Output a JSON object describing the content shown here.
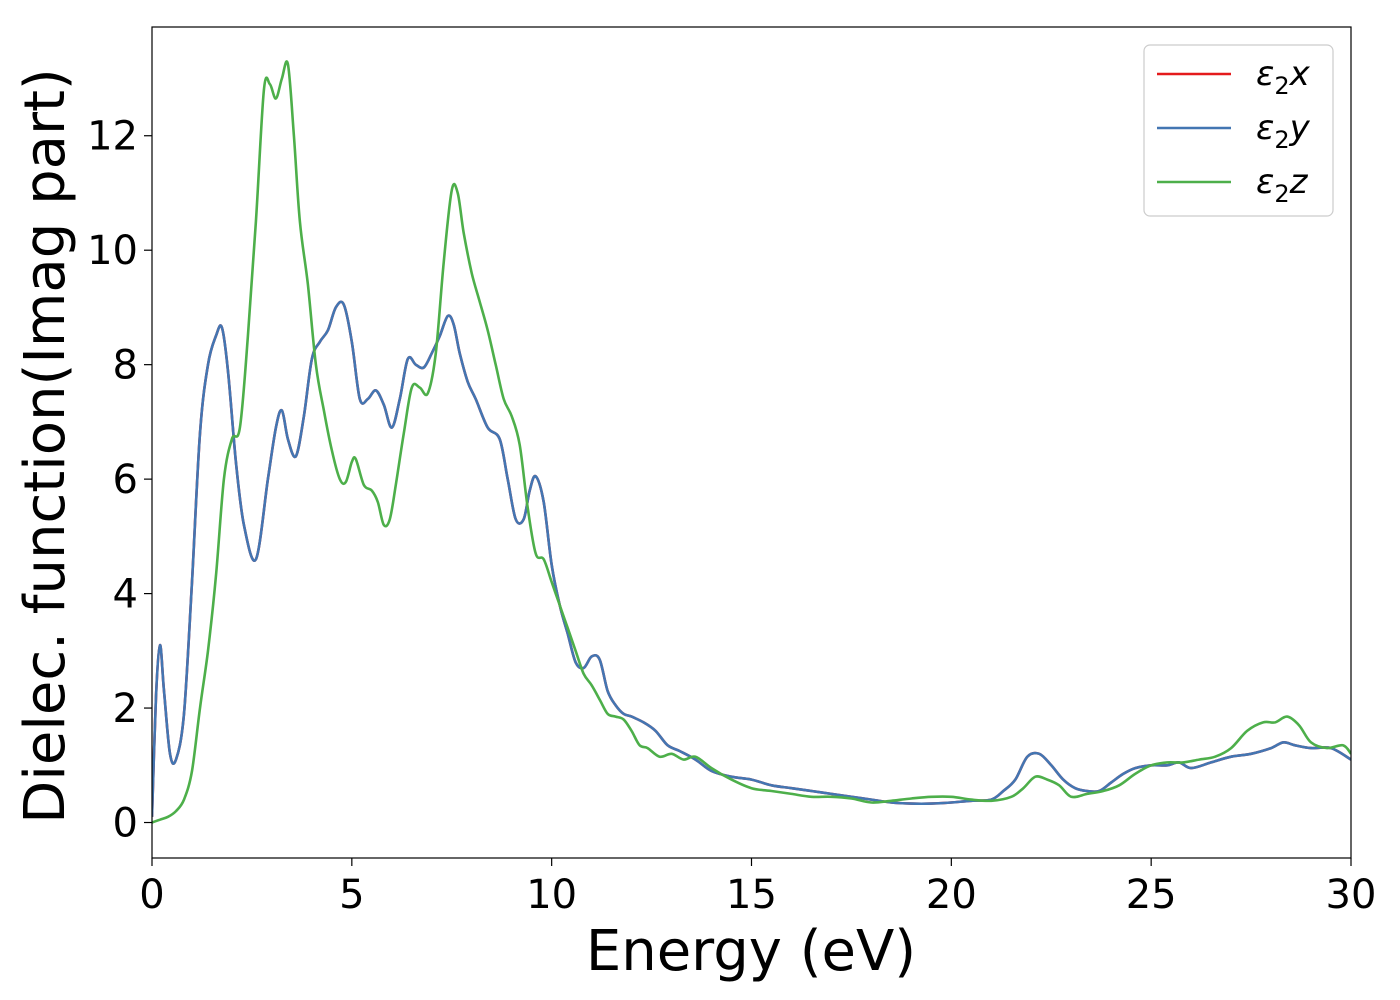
{
  "chart_data": {
    "type": "line",
    "xlabel": "Energy (eV)",
    "ylabel": "Dielec. function(Imag part)",
    "xlim": [
      0,
      30
    ],
    "ylim": [
      -0.62,
      13.9
    ],
    "xticks": [
      0,
      5,
      10,
      15,
      20,
      25,
      30
    ],
    "yticks": [
      0,
      2,
      4,
      6,
      8,
      10,
      12
    ],
    "grid": false,
    "legend_position": "top-right",
    "series": [
      {
        "name": "ε2x",
        "legend_symbol": "ε",
        "legend_sub": "2",
        "legend_suffix": "x",
        "color": "#e41a1c",
        "x": [
          0,
          0.1,
          0.2,
          0.3,
          0.45,
          0.6,
          0.8,
          1.0,
          1.2,
          1.4,
          1.6,
          1.75,
          1.9,
          2.1,
          2.3,
          2.6,
          2.9,
          3.1,
          3.25,
          3.4,
          3.6,
          3.8,
          4.0,
          4.2,
          4.4,
          4.6,
          4.8,
          5.0,
          5.2,
          5.4,
          5.6,
          5.8,
          6.0,
          6.2,
          6.4,
          6.6,
          6.8,
          7.0,
          7.2,
          7.4,
          7.55,
          7.7,
          7.9,
          8.1,
          8.4,
          8.7,
          8.9,
          9.1,
          9.3,
          9.45,
          9.6,
          9.8,
          10.0,
          10.2,
          10.4,
          10.6,
          10.8,
          11.0,
          11.2,
          11.4,
          11.6,
          11.8,
          12.0,
          12.3,
          12.6,
          12.9,
          13.2,
          13.6,
          14.0,
          14.5,
          15.0,
          15.5,
          16.0,
          16.5,
          17.0,
          17.5,
          18.0,
          18.5,
          19.0,
          19.5,
          20.0,
          20.5,
          21.0,
          21.3,
          21.6,
          21.9,
          22.2,
          22.5,
          22.8,
          23.1,
          23.4,
          23.7,
          24.0,
          24.3,
          24.6,
          25.0,
          25.4,
          25.7,
          26.0,
          26.5,
          27.0,
          27.5,
          28.0,
          28.3,
          28.6,
          29.0,
          29.5,
          30.0
        ],
        "y": [
          0.1,
          2.2,
          3.1,
          2.3,
          1.2,
          1.1,
          1.9,
          4.2,
          6.8,
          8.0,
          8.5,
          8.65,
          7.9,
          6.3,
          5.2,
          4.6,
          6.0,
          6.9,
          7.2,
          6.7,
          6.4,
          7.1,
          8.1,
          8.4,
          8.6,
          9.0,
          9.05,
          8.4,
          7.4,
          7.4,
          7.55,
          7.3,
          6.9,
          7.4,
          8.1,
          8.0,
          7.95,
          8.2,
          8.5,
          8.85,
          8.7,
          8.2,
          7.7,
          7.4,
          6.9,
          6.7,
          6.0,
          5.3,
          5.3,
          5.8,
          6.05,
          5.6,
          4.5,
          3.8,
          3.3,
          2.8,
          2.7,
          2.9,
          2.85,
          2.3,
          2.05,
          1.9,
          1.85,
          1.75,
          1.6,
          1.35,
          1.25,
          1.1,
          0.9,
          0.8,
          0.75,
          0.65,
          0.6,
          0.55,
          0.5,
          0.45,
          0.4,
          0.35,
          0.33,
          0.33,
          0.35,
          0.38,
          0.4,
          0.55,
          0.75,
          1.15,
          1.2,
          1.0,
          0.75,
          0.6,
          0.55,
          0.55,
          0.7,
          0.85,
          0.95,
          1.0,
          1.0,
          1.05,
          0.95,
          1.05,
          1.15,
          1.2,
          1.3,
          1.4,
          1.35,
          1.3,
          1.3,
          1.1
        ]
      },
      {
        "name": "ε2y",
        "legend_symbol": "ε",
        "legend_sub": "2",
        "legend_suffix": "y",
        "color": "#4376b2",
        "x": [
          0,
          0.1,
          0.2,
          0.3,
          0.45,
          0.6,
          0.8,
          1.0,
          1.2,
          1.4,
          1.6,
          1.75,
          1.9,
          2.1,
          2.3,
          2.6,
          2.9,
          3.1,
          3.25,
          3.4,
          3.6,
          3.8,
          4.0,
          4.2,
          4.4,
          4.6,
          4.8,
          5.0,
          5.2,
          5.4,
          5.6,
          5.8,
          6.0,
          6.2,
          6.4,
          6.6,
          6.8,
          7.0,
          7.2,
          7.4,
          7.55,
          7.7,
          7.9,
          8.1,
          8.4,
          8.7,
          8.9,
          9.1,
          9.3,
          9.45,
          9.6,
          9.8,
          10.0,
          10.2,
          10.4,
          10.6,
          10.8,
          11.0,
          11.2,
          11.4,
          11.6,
          11.8,
          12.0,
          12.3,
          12.6,
          12.9,
          13.2,
          13.6,
          14.0,
          14.5,
          15.0,
          15.5,
          16.0,
          16.5,
          17.0,
          17.5,
          18.0,
          18.5,
          19.0,
          19.5,
          20.0,
          20.5,
          21.0,
          21.3,
          21.6,
          21.9,
          22.2,
          22.5,
          22.8,
          23.1,
          23.4,
          23.7,
          24.0,
          24.3,
          24.6,
          25.0,
          25.4,
          25.7,
          26.0,
          26.5,
          27.0,
          27.5,
          28.0,
          28.3,
          28.6,
          29.0,
          29.5,
          30.0
        ],
        "y": [
          0.1,
          2.2,
          3.1,
          2.3,
          1.2,
          1.1,
          1.9,
          4.2,
          6.8,
          8.0,
          8.5,
          8.65,
          7.9,
          6.3,
          5.2,
          4.6,
          6.0,
          6.9,
          7.2,
          6.7,
          6.4,
          7.1,
          8.1,
          8.4,
          8.6,
          9.0,
          9.05,
          8.4,
          7.4,
          7.4,
          7.55,
          7.3,
          6.9,
          7.4,
          8.1,
          8.0,
          7.95,
          8.2,
          8.5,
          8.85,
          8.7,
          8.2,
          7.7,
          7.4,
          6.9,
          6.7,
          6.0,
          5.3,
          5.3,
          5.8,
          6.05,
          5.6,
          4.5,
          3.8,
          3.3,
          2.8,
          2.7,
          2.9,
          2.85,
          2.3,
          2.05,
          1.9,
          1.85,
          1.75,
          1.6,
          1.35,
          1.25,
          1.1,
          0.9,
          0.8,
          0.75,
          0.65,
          0.6,
          0.55,
          0.5,
          0.45,
          0.4,
          0.35,
          0.33,
          0.33,
          0.35,
          0.38,
          0.4,
          0.55,
          0.75,
          1.15,
          1.2,
          1.0,
          0.75,
          0.6,
          0.55,
          0.55,
          0.7,
          0.85,
          0.95,
          1.0,
          1.0,
          1.05,
          0.95,
          1.05,
          1.15,
          1.2,
          1.3,
          1.4,
          1.35,
          1.3,
          1.3,
          1.1
        ]
      },
      {
        "name": "ε2z",
        "legend_symbol": "ε",
        "legend_sub": "2",
        "legend_suffix": "z",
        "color": "#4daf4a",
        "x": [
          0,
          0.2,
          0.4,
          0.6,
          0.8,
          1.0,
          1.2,
          1.4,
          1.6,
          1.8,
          2.0,
          2.2,
          2.4,
          2.6,
          2.8,
          2.95,
          3.1,
          3.25,
          3.4,
          3.55,
          3.7,
          3.9,
          4.1,
          4.3,
          4.5,
          4.7,
          4.85,
          5.0,
          5.1,
          5.3,
          5.5,
          5.65,
          5.8,
          5.95,
          6.1,
          6.3,
          6.5,
          6.7,
          6.9,
          7.1,
          7.3,
          7.5,
          7.65,
          7.8,
          8.0,
          8.2,
          8.4,
          8.6,
          8.8,
          9.0,
          9.2,
          9.4,
          9.6,
          9.8,
          10.0,
          10.2,
          10.4,
          10.6,
          10.8,
          11.0,
          11.2,
          11.4,
          11.6,
          11.8,
          12.0,
          12.2,
          12.4,
          12.7,
          13.0,
          13.3,
          13.6,
          14.0,
          14.5,
          15.0,
          15.5,
          16.0,
          16.5,
          17.0,
          17.5,
          18.0,
          18.5,
          19.0,
          19.5,
          20.0,
          20.5,
          21.0,
          21.5,
          21.8,
          22.1,
          22.4,
          22.7,
          23.0,
          23.4,
          23.8,
          24.2,
          24.6,
          25.0,
          25.4,
          25.8,
          26.2,
          26.6,
          27.0,
          27.4,
          27.8,
          28.1,
          28.4,
          28.7,
          29.0,
          29.4,
          29.8,
          30.0
        ],
        "y": [
          0.0,
          0.05,
          0.1,
          0.2,
          0.4,
          0.9,
          2.0,
          3.0,
          4.3,
          6.0,
          6.7,
          6.9,
          8.5,
          10.5,
          12.8,
          12.9,
          12.65,
          13.0,
          13.25,
          12.0,
          10.5,
          9.4,
          8.0,
          7.2,
          6.5,
          6.0,
          5.95,
          6.3,
          6.35,
          5.9,
          5.8,
          5.6,
          5.2,
          5.3,
          5.9,
          6.8,
          7.6,
          7.6,
          7.5,
          8.2,
          9.8,
          11.05,
          11.0,
          10.3,
          9.6,
          9.1,
          8.6,
          8.0,
          7.4,
          7.1,
          6.6,
          5.5,
          4.7,
          4.6,
          4.2,
          3.8,
          3.4,
          3.0,
          2.6,
          2.4,
          2.15,
          1.9,
          1.85,
          1.8,
          1.6,
          1.35,
          1.3,
          1.15,
          1.2,
          1.1,
          1.15,
          0.95,
          0.75,
          0.6,
          0.55,
          0.5,
          0.45,
          0.45,
          0.42,
          0.35,
          0.38,
          0.42,
          0.45,
          0.45,
          0.4,
          0.38,
          0.45,
          0.6,
          0.8,
          0.75,
          0.65,
          0.45,
          0.5,
          0.55,
          0.65,
          0.85,
          1.0,
          1.05,
          1.05,
          1.1,
          1.15,
          1.3,
          1.6,
          1.75,
          1.75,
          1.85,
          1.7,
          1.4,
          1.3,
          1.35,
          1.2
        ]
      }
    ]
  }
}
